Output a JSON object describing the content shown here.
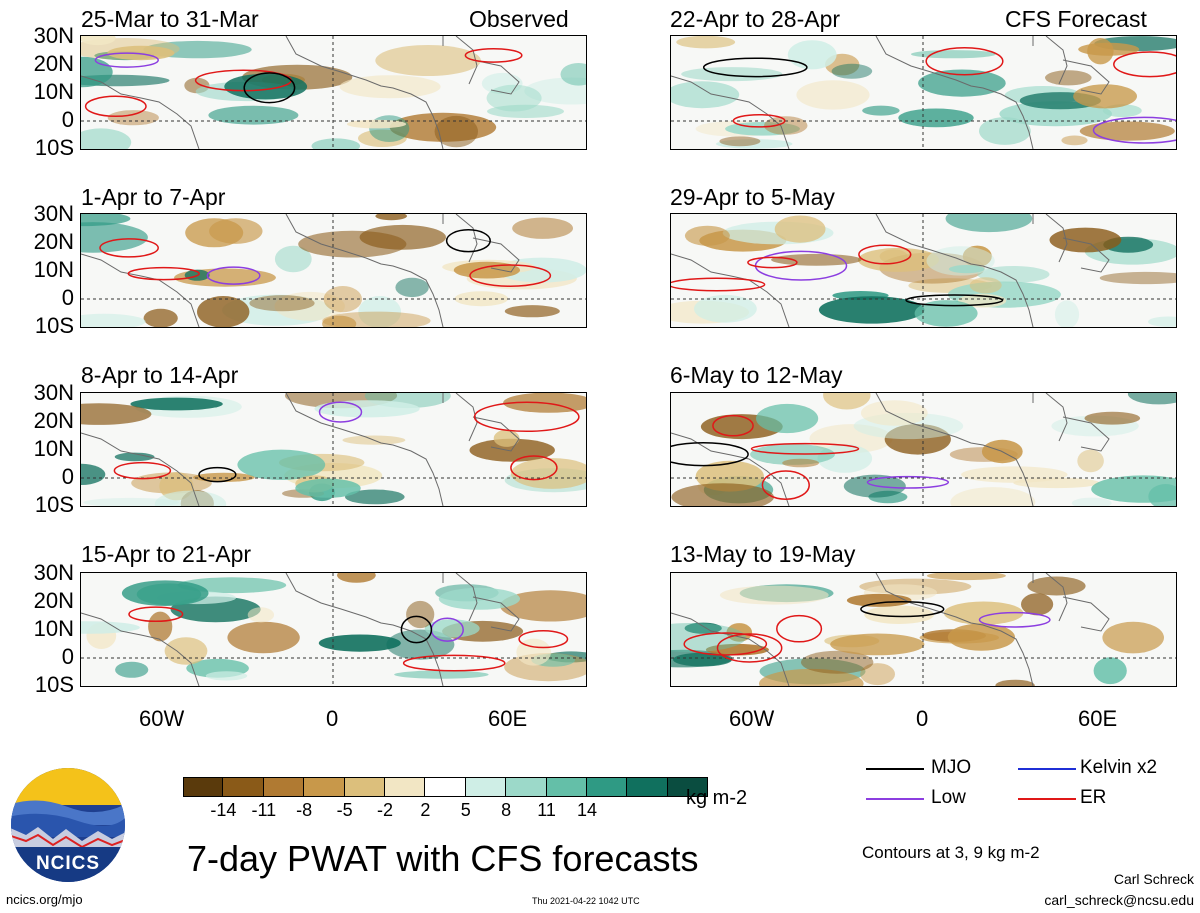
{
  "header": {
    "left_tag": "Observed",
    "right_tag": "CFS Forecast"
  },
  "panels_left": [
    {
      "title": "25-Mar to 31-Mar"
    },
    {
      "title": "1-Apr to 7-Apr"
    },
    {
      "title": "8-Apr to 14-Apr"
    },
    {
      "title": "15-Apr to 21-Apr"
    }
  ],
  "panels_right": [
    {
      "title": "22-Apr to 28-Apr"
    },
    {
      "title": "29-Apr to 5-May"
    },
    {
      "title": "6-May to 12-May"
    },
    {
      "title": "13-May to 19-May"
    }
  ],
  "lat_labels": [
    "30N",
    "20N",
    "10N",
    "0",
    "10S"
  ],
  "lon_labels": [
    "60W",
    "0",
    "60E"
  ],
  "colorbar": {
    "unit": "kg m-2",
    "ticks": [
      "-14",
      "-11",
      "-8",
      "-5",
      "-2",
      "2",
      "5",
      "8",
      "11",
      "14"
    ],
    "colors": [
      "#5a3a0c",
      "#8a5a18",
      "#b07a32",
      "#c8984a",
      "#dcbf7c",
      "#f2e6c4",
      "#ffffff",
      "#cfeee6",
      "#9cd9c9",
      "#64bfa8",
      "#2f9a84",
      "#10705e",
      "#0a4d40"
    ]
  },
  "legend": {
    "items": [
      {
        "label": "MJO",
        "color": "#000000"
      },
      {
        "label": "Kelvin x2",
        "color": "#1f2fd6"
      },
      {
        "label": "Low",
        "color": "#8c3ee0"
      },
      {
        "label": "ER",
        "color": "#e01818"
      }
    ],
    "contours_note": "Contours at 3, 9 kg m-2"
  },
  "footer": {
    "main_title": "7-day PWAT with CFS forecasts",
    "logo_text": "NCICS",
    "url": "ncics.org/mjo",
    "timestamp": "Thu 2021-04-22 1042 UTC",
    "author": "Carl Schreck",
    "email": "carl_schreck@ncsu.edu"
  }
}
